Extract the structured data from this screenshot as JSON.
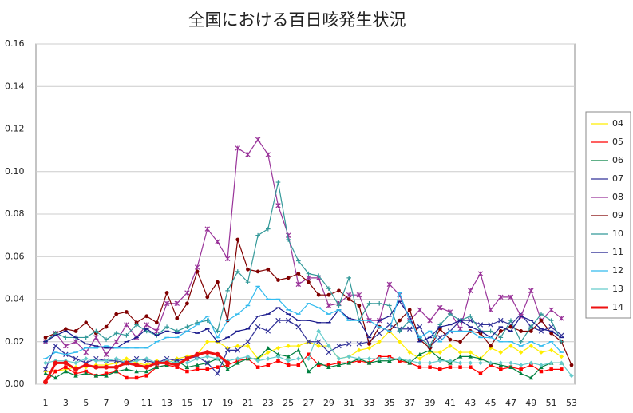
{
  "chart_data": {
    "type": "line",
    "title": "全国における百日咳発生状況",
    "categories": [
      1,
      null,
      3,
      null,
      5,
      null,
      7,
      null,
      9,
      null,
      11,
      null,
      13,
      null,
      15,
      null,
      17,
      null,
      19,
      null,
      21,
      null,
      23,
      null,
      25,
      null,
      27,
      null,
      29,
      null,
      31,
      null,
      33,
      null,
      35,
      null,
      37,
      null,
      39,
      null,
      41,
      null,
      43,
      null,
      45,
      null,
      47,
      null,
      49,
      null,
      51,
      null,
      53
    ],
    "ylim": [
      0,
      0.16
    ],
    "yticks": [
      {
        "value": 0,
        "label": "0.00"
      },
      {
        "value": 0.02,
        "label": "0.02"
      },
      {
        "value": 0.04,
        "label": "0.04"
      },
      {
        "value": 0.06,
        "label": "0.06"
      },
      {
        "value": 0.08,
        "label": "0.08"
      },
      {
        "value": 0.1,
        "label": "0.10"
      },
      {
        "value": 0.12,
        "label": "0.12"
      },
      {
        "value": 0.14,
        "label": "0.14"
      },
      {
        "value": 0.16,
        "label": "0.16"
      }
    ],
    "grid": true,
    "legend": "right",
    "series": [
      {
        "name": "04",
        "color": "#ffee00",
        "marker": "diamond",
        "values": [
          0.006,
          0.006,
          0.007,
          0.008,
          0.008,
          0.009,
          0.009,
          0.01,
          0.012,
          0.01,
          0.009,
          0.011,
          0.01,
          0.012,
          0.013,
          0.014,
          0.02,
          0.02,
          0.017,
          0.018,
          0.018,
          0.012,
          0.015,
          0.017,
          0.018,
          0.018,
          0.02,
          0.018,
          0.018,
          0.012,
          0.013,
          0.016,
          0.017,
          0.02,
          0.025,
          0.02,
          0.015,
          0.012,
          0.015,
          0.015,
          0.018,
          0.015,
          0.015,
          0.012,
          0.017,
          0.015,
          0.018,
          0.015,
          0.018,
          0.015,
          0.016,
          0.013,
          null
        ]
      },
      {
        "name": "05",
        "color": "#ff0000",
        "marker": "square",
        "values": [
          0.001,
          0.006,
          0.008,
          0.005,
          0.006,
          0.004,
          0.005,
          0.006,
          0.003,
          0.003,
          0.004,
          0.008,
          0.009,
          0.008,
          0.006,
          0.007,
          0.007,
          0.008,
          0.009,
          0.011,
          0.012,
          0.008,
          0.009,
          0.011,
          0.009,
          0.009,
          0.014,
          0.009,
          0.009,
          0.01,
          0.01,
          0.011,
          0.01,
          0.013,
          0.013,
          0.011,
          0.01,
          0.008,
          0.008,
          0.007,
          0.008,
          0.008,
          0.008,
          0.005,
          0.009,
          0.007,
          0.008,
          0.007,
          0.009,
          0.006,
          0.007,
          0.007,
          null
        ]
      },
      {
        "name": "06",
        "color": "#008040",
        "marker": "triangle",
        "values": [
          0.005,
          0.003,
          0.006,
          0.004,
          0.005,
          0.004,
          0.004,
          0.006,
          0.007,
          0.006,
          0.006,
          0.008,
          0.009,
          0.011,
          0.008,
          0.009,
          0.01,
          0.012,
          0.007,
          0.01,
          0.012,
          0.012,
          0.017,
          0.014,
          0.013,
          0.016,
          0.006,
          0.01,
          0.008,
          0.009,
          0.01,
          0.012,
          0.01,
          0.011,
          0.011,
          0.012,
          0.01,
          0.014,
          0.016,
          0.012,
          0.01,
          0.013,
          0.013,
          0.012,
          0.01,
          0.009,
          0.008,
          0.005,
          0.003,
          0.008,
          0.01,
          0.01,
          null
        ]
      },
      {
        "name": "07",
        "color": "#333399",
        "marker": "x",
        "values": [
          0.007,
          0.018,
          0.014,
          0.012,
          0.01,
          0.012,
          0.011,
          0.011,
          0.01,
          0.012,
          0.011,
          0.01,
          0.012,
          0.011,
          0.012,
          0.013,
          0.01,
          0.005,
          0.016,
          0.016,
          0.02,
          0.027,
          0.025,
          0.03,
          0.03,
          0.027,
          0.02,
          0.02,
          0.015,
          0.018,
          0.019,
          0.019,
          0.02,
          0.024,
          0.028,
          0.026,
          0.026,
          0.027,
          0.018,
          0.022,
          0.025,
          0.03,
          0.03,
          0.028,
          0.028,
          0.03,
          0.028,
          0.033,
          0.027,
          0.025,
          0.027,
          0.023,
          null
        ]
      },
      {
        "name": "08",
        "color": "#993399",
        "marker": "star",
        "values": [
          0.02,
          0.024,
          0.018,
          0.02,
          0.015,
          0.022,
          0.014,
          0.02,
          0.028,
          0.022,
          0.028,
          0.025,
          0.038,
          0.038,
          0.043,
          0.055,
          0.073,
          0.067,
          0.059,
          0.111,
          0.108,
          0.115,
          0.108,
          0.084,
          0.07,
          0.047,
          0.05,
          0.05,
          0.037,
          0.038,
          0.042,
          0.042,
          0.03,
          0.03,
          0.047,
          0.042,
          0.03,
          0.035,
          0.03,
          0.036,
          0.034,
          0.026,
          0.044,
          0.052,
          0.035,
          0.041,
          0.041,
          0.032,
          0.044,
          0.03,
          0.035,
          0.031,
          null
        ]
      },
      {
        "name": "09",
        "color": "#800000",
        "marker": "circle",
        "values": [
          0.022,
          0.024,
          0.026,
          0.025,
          0.029,
          0.024,
          0.027,
          0.033,
          0.034,
          0.029,
          0.032,
          0.029,
          0.043,
          0.031,
          0.038,
          0.053,
          0.041,
          0.048,
          0.03,
          0.068,
          0.054,
          0.053,
          0.054,
          0.049,
          0.05,
          0.052,
          0.048,
          0.042,
          0.042,
          0.044,
          0.04,
          0.037,
          0.019,
          0.027,
          0.025,
          0.03,
          0.035,
          0.021,
          0.017,
          0.026,
          0.021,
          0.02,
          0.025,
          0.024,
          0.018,
          0.025,
          0.027,
          0.025,
          0.025,
          0.03,
          0.024,
          0.02,
          0.009
        ]
      },
      {
        "name": "10",
        "color": "#339999",
        "marker": "plus",
        "values": [
          0.02,
          0.024,
          0.022,
          0.022,
          0.022,
          0.025,
          0.021,
          0.024,
          0.023,
          0.028,
          0.025,
          0.023,
          0.027,
          0.025,
          0.027,
          0.029,
          0.03,
          0.025,
          0.044,
          0.053,
          0.048,
          0.07,
          0.073,
          0.095,
          0.068,
          0.058,
          0.052,
          0.051,
          0.045,
          0.037,
          0.05,
          0.03,
          0.038,
          0.038,
          0.037,
          0.025,
          0.03,
          0.022,
          0.018,
          0.028,
          0.033,
          0.03,
          0.032,
          0.025,
          0.025,
          0.022,
          0.03,
          0.02,
          0.027,
          0.033,
          0.03,
          0.02,
          null
        ]
      },
      {
        "name": "11",
        "color": "#1a1a8c",
        "marker": "dash",
        "values": [
          0.02,
          0.023,
          0.025,
          0.022,
          0.019,
          0.018,
          0.017,
          0.017,
          0.02,
          0.022,
          0.026,
          0.023,
          0.025,
          0.024,
          0.025,
          0.024,
          0.026,
          0.02,
          0.022,
          0.025,
          0.026,
          0.032,
          0.033,
          0.036,
          0.033,
          0.03,
          0.03,
          0.029,
          0.029,
          0.035,
          0.031,
          0.03,
          0.022,
          0.03,
          0.032,
          0.039,
          0.032,
          0.02,
          0.022,
          0.027,
          0.028,
          0.03,
          0.027,
          0.025,
          0.022,
          0.027,
          0.025,
          0.032,
          0.03,
          0.026,
          0.025,
          0.022,
          null
        ]
      },
      {
        "name": "12",
        "color": "#33bbee",
        "marker": "dash",
        "values": [
          0.012,
          0.015,
          0.014,
          0.015,
          0.017,
          0.017,
          0.018,
          0.017,
          0.017,
          0.017,
          0.017,
          0.02,
          0.022,
          0.022,
          0.025,
          0.028,
          0.032,
          0.022,
          0.03,
          0.033,
          0.037,
          0.046,
          0.04,
          0.04,
          0.035,
          0.033,
          0.038,
          0.036,
          0.033,
          0.035,
          0.03,
          0.03,
          0.03,
          0.027,
          0.025,
          0.043,
          0.03,
          0.022,
          0.025,
          0.02,
          0.025,
          0.025,
          0.025,
          0.022,
          0.022,
          0.02,
          0.02,
          0.018,
          0.02,
          0.018,
          0.02,
          0.015,
          null
        ]
      },
      {
        "name": "13",
        "color": "#66cccc",
        "marker": "diamond",
        "values": [
          0.01,
          0.011,
          0.011,
          0.01,
          0.012,
          0.011,
          0.011,
          0.012,
          0.01,
          0.011,
          0.012,
          0.01,
          0.011,
          0.01,
          0.01,
          0.012,
          0.013,
          0.012,
          0.011,
          0.012,
          0.013,
          0.011,
          0.012,
          0.013,
          0.011,
          0.012,
          0.012,
          0.025,
          0.018,
          0.012,
          0.013,
          0.012,
          0.012,
          0.012,
          0.012,
          0.012,
          0.011,
          0.01,
          0.01,
          0.011,
          0.011,
          0.01,
          0.01,
          0.01,
          0.01,
          0.01,
          0.01,
          0.009,
          0.01,
          0.009,
          0.01,
          0.01,
          0.004
        ]
      },
      {
        "name": "14",
        "color": "#ee1111",
        "marker": "circle",
        "width": 3,
        "values": [
          0.001,
          0.01,
          0.01,
          0.007,
          0.009,
          0.008,
          0.008,
          0.008,
          0.01,
          0.009,
          0.008,
          0.01,
          0.01,
          0.009,
          0.012,
          0.014,
          0.015,
          0.014,
          0.01,
          null,
          null,
          null,
          null,
          null,
          null,
          null,
          null,
          null,
          null,
          null,
          null,
          null,
          null,
          null,
          null,
          null,
          null,
          null,
          null,
          null,
          null,
          null,
          null,
          null,
          null,
          null,
          null,
          null,
          null,
          null,
          null,
          null,
          null
        ]
      }
    ]
  }
}
